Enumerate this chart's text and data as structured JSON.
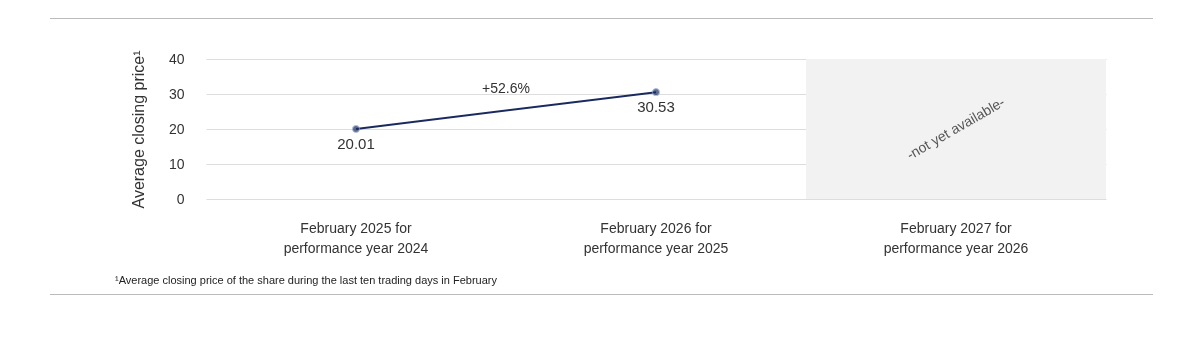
{
  "chart_data": {
    "type": "line",
    "ylabel": "Average closing price¹",
    "categories": [
      "February 2025 for performance year 2024",
      "February 2026 for performance year 2025",
      "February 2027 for performance year 2026"
    ],
    "series": [
      {
        "color": "#1a2a5e",
        "values": [
          20.01,
          30.53,
          null
        ]
      }
    ],
    "ylim": [
      0,
      40
    ],
    "yticks": [
      0,
      10,
      20,
      30,
      40
    ],
    "grid": "y",
    "marker": "circle",
    "data_labels": true,
    "bands": [
      {
        "axis": "x",
        "from": "February 2027 for performance year 2026",
        "to": "February 2027 for performance year 2026",
        "label": "-not yet available-",
        "color": "#f2f2f2"
      }
    ],
    "annotations": [
      "+52.6%",
      "¹Average closing price of the share during the last ten trading days in February"
    ]
  }
}
